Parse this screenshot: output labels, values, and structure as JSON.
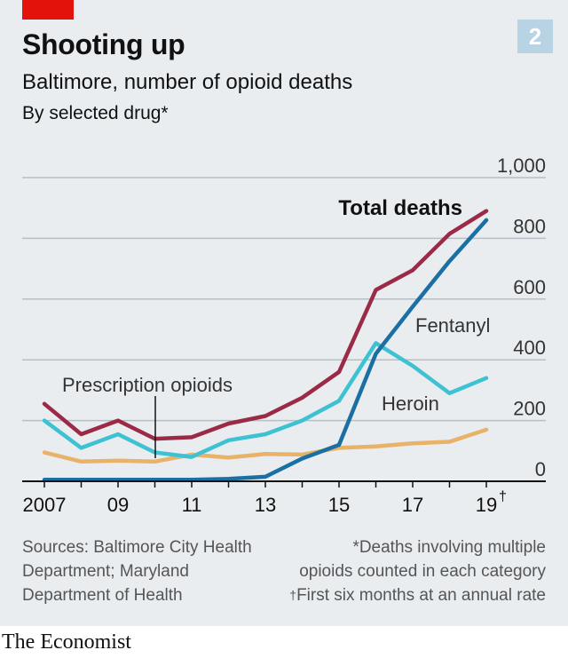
{
  "header": {
    "figure_number": "2",
    "title": "Shooting up",
    "subtitle": "Baltimore, number of opioid deaths",
    "note": "By selected drug*"
  },
  "footer": {
    "sources_line1": "Sources: Baltimore City Health",
    "sources_line2": "Department; Maryland",
    "sources_line3": "Department of Health",
    "note1_line1": "*Deaths involving multiple",
    "note1_line2": "opioids counted in each category",
    "note2_mark": "†",
    "note2_text": "First six months at an annual rate",
    "brand": "The Economist"
  },
  "colors": {
    "total": "#9b2a47",
    "fentanyl": "#1b6fa3",
    "heroin": "#3ec2d3",
    "prescription": "#e8b268",
    "background": "#e9edf0",
    "accent": "#e3120b"
  },
  "chart_data": {
    "type": "line",
    "x": [
      2007,
      2008,
      2009,
      2010,
      2011,
      2012,
      2013,
      2014,
      2015,
      2016,
      2017,
      2018,
      2019
    ],
    "x_tick_labels": [
      "2007",
      "09",
      "11",
      "13",
      "15",
      "17",
      "19"
    ],
    "x_last_label_mark": "†",
    "y_ticks": [
      "0",
      "200",
      "400",
      "600",
      "800",
      "1,000"
    ],
    "ylim": [
      0,
      1000
    ],
    "series": [
      {
        "name": "Total deaths",
        "key": "total",
        "values": [
          255,
          155,
          200,
          140,
          145,
          190,
          215,
          275,
          360,
          630,
          695,
          815,
          890
        ]
      },
      {
        "name": "Fentanyl",
        "key": "fentanyl",
        "values": [
          5,
          5,
          5,
          5,
          5,
          8,
          15,
          75,
          120,
          420,
          575,
          725,
          860
        ]
      },
      {
        "name": "Heroin",
        "key": "heroin",
        "values": [
          200,
          110,
          155,
          95,
          80,
          135,
          155,
          200,
          265,
          455,
          380,
          290,
          340
        ]
      },
      {
        "name": "Prescription opioids",
        "key": "prescription",
        "values": [
          95,
          65,
          68,
          65,
          88,
          78,
          90,
          88,
          110,
          115,
          125,
          130,
          170
        ]
      }
    ]
  }
}
